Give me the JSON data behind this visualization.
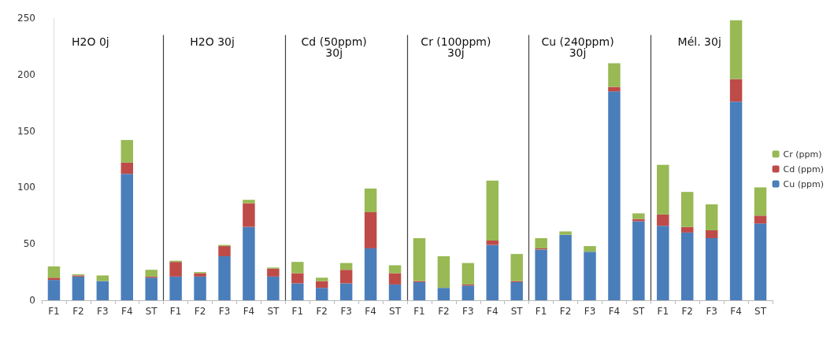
{
  "chart_data": {
    "type": "bar",
    "stacked": true,
    "categories": [
      "F1",
      "F2",
      "F3",
      "F4",
      "ST",
      "F1",
      "F2",
      "F3",
      "F4",
      "ST",
      "F1",
      "F2",
      "F3",
      "F4",
      "ST",
      "F1",
      "F2",
      "F3",
      "F4",
      "ST",
      "F1",
      "F2",
      "F3",
      "F4",
      "ST",
      "F1",
      "F2",
      "F3",
      "F4",
      "ST"
    ],
    "series": [
      {
        "name": "Cu (ppm)",
        "color": "#4a7ebb",
        "values": [
          18,
          21,
          17,
          112,
          20,
          21,
          21,
          39,
          65,
          21,
          15,
          11,
          15,
          46,
          14,
          16,
          11,
          13,
          49,
          16,
          45,
          58,
          43,
          185,
          70,
          66,
          60,
          55,
          176,
          68
        ]
      },
      {
        "name": "Cd (ppm)",
        "color": "#be4b48",
        "values": [
          2,
          1,
          0,
          10,
          1,
          13,
          3,
          9,
          21,
          7,
          9,
          6,
          12,
          32,
          10,
          1,
          0,
          1,
          4,
          1,
          1,
          0,
          0,
          4,
          2,
          10,
          5,
          7,
          20,
          7
        ]
      },
      {
        "name": "Cr (ppm)",
        "color": "#98b954",
        "values": [
          10,
          1,
          5,
          20,
          6,
          1,
          1,
          1,
          3,
          1,
          10,
          3,
          6,
          21,
          7,
          38,
          28,
          19,
          53,
          24,
          9,
          3,
          5,
          21,
          5,
          44,
          31,
          23,
          52,
          25
        ]
      }
    ],
    "ylim": [
      0,
      250
    ],
    "yticks": [
      0,
      50,
      100,
      150,
      200,
      250
    ],
    "grid": false,
    "legend": "right",
    "annotations": [
      "H2O 0j",
      "H2O 30j",
      "Cd (50ppm)\n30j",
      "Cr (100ppm)\n30j",
      "Cu (240ppm)\n30j",
      "Mél. 30j"
    ]
  }
}
